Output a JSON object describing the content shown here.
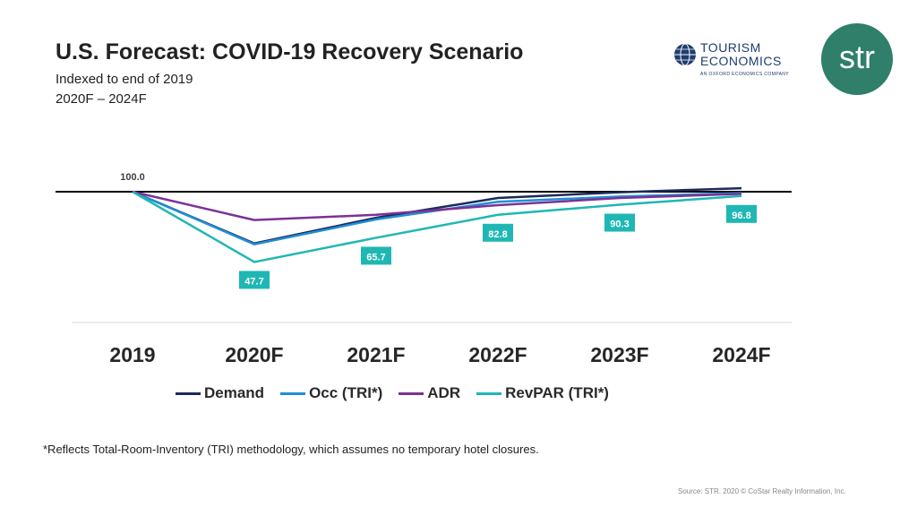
{
  "title": "U.S. Forecast: COVID-19 Recovery Scenario",
  "subtitle_line1": "Indexed to end of 2019",
  "subtitle_line2": "2020F – 2024F",
  "logos": {
    "tourism_line1": "TOURISM",
    "tourism_line2": "ECONOMICS",
    "tourism_sub": "AN OXFORD ECONOMICS COMPANY",
    "str_text": "str",
    "str_color": "#2f7f6a"
  },
  "chart_data": {
    "type": "line",
    "categories": [
      "2019",
      "2020F",
      "2021F",
      "2022F",
      "2023F",
      "2024F"
    ],
    "baseline": 100.0,
    "baseline_label": "100.0",
    "ylim": [
      40,
      110
    ],
    "series": [
      {
        "name": "Demand",
        "color": "#1b2a5a",
        "values": [
          100.0,
          61.5,
          80.6,
          95.3,
          99.6,
          102.6
        ]
      },
      {
        "name": "Occ (TRI*)",
        "color": "#1e8fd6",
        "values": [
          100.0,
          60.9,
          79.4,
          92.5,
          96.4,
          99.0
        ]
      },
      {
        "name": "ADR",
        "color": "#7b3294",
        "values": [
          100.0,
          78.9,
          82.8,
          90.0,
          95.3,
          98.4
        ]
      },
      {
        "name": "RevPAR (TRI*)",
        "color": "#1fb7b4",
        "values": [
          100.0,
          47.7,
          65.7,
          82.8,
          90.3,
          96.8
        ]
      }
    ],
    "data_labels": {
      "series": "RevPAR (TRI*)",
      "values": [
        "47.7",
        "65.7",
        "82.8",
        "90.3",
        "96.8"
      ],
      "color": "#1fb7b4"
    }
  },
  "footnote": "*Reflects Total-Room-Inventory (TRI) methodology, which assumes no temporary hotel closures.",
  "source": "Source: STR. 2020 © CoStar Realty Information, Inc."
}
